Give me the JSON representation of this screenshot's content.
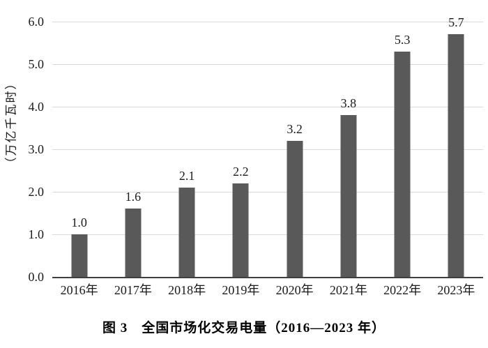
{
  "caption": "图 3　全国市场化交易电量（2016—2023 年）",
  "chart_data": {
    "type": "bar",
    "title": "图 3 全国市场化交易电量（2016—2023 年）",
    "categories": [
      "2016年",
      "2017年",
      "2018年",
      "2019年",
      "2020年",
      "2021年",
      "2022年",
      "2023年"
    ],
    "values": [
      1.0,
      1.6,
      2.1,
      2.2,
      3.2,
      3.8,
      5.3,
      5.7
    ],
    "value_labels": [
      "1.0",
      "1.6",
      "2.1",
      "2.2",
      "3.2",
      "3.8",
      "5.3",
      "5.7"
    ],
    "xlabel": "",
    "ylabel": "（万亿千瓦时）",
    "ylim": [
      0,
      6
    ],
    "ytick_step": 1.0,
    "ytick_labels": [
      "0.0",
      "1.0",
      "2.0",
      "3.0",
      "4.0",
      "5.0",
      "6.0"
    ],
    "grid": true,
    "legend": "none",
    "colors": {
      "bar": "#595959",
      "gridline": "#d9d9d9",
      "axis_line": "#3f3f3f",
      "text": "#1a1a1a"
    }
  }
}
